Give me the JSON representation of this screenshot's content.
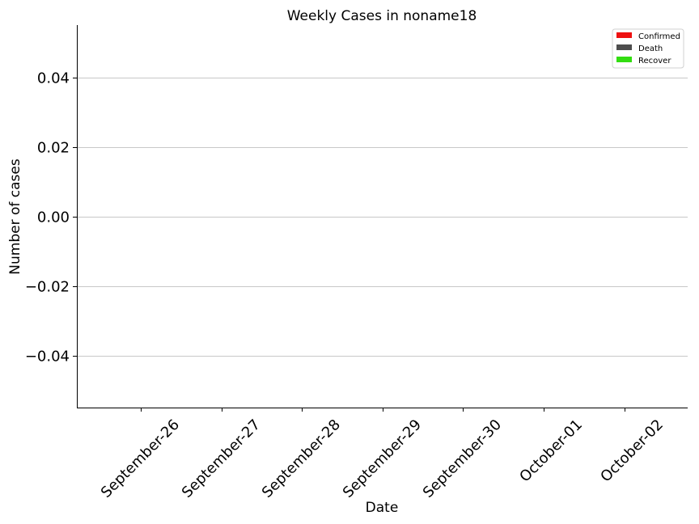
{
  "chart_data": {
    "type": "bar",
    "title": "Weekly Cases in noname18",
    "xlabel": "Date",
    "ylabel": "Number of cases",
    "categories": [
      "September-26",
      "September-27",
      "September-28",
      "September-29",
      "September-30",
      "October-01",
      "October-02"
    ],
    "series": [
      {
        "name": "Confirmed",
        "color": "#ee1111",
        "values": [
          0,
          0,
          0,
          0,
          0,
          0,
          0
        ]
      },
      {
        "name": "Death",
        "color": "#4d4d4d",
        "values": [
          0,
          0,
          0,
          0,
          0,
          0,
          0
        ]
      },
      {
        "name": "Recover",
        "color": "#33dd11",
        "values": [
          0,
          0,
          0,
          0,
          0,
          0,
          0
        ]
      }
    ],
    "ylim": [
      -0.055,
      0.055
    ],
    "yticks": [
      0.04,
      0.02,
      0.0,
      -0.02,
      -0.04
    ],
    "ytick_labels": [
      "0.04",
      "0.02",
      "0.00",
      "−0.02",
      "−0.04"
    ],
    "grid": "horizontal",
    "legend_position": "top-right"
  }
}
